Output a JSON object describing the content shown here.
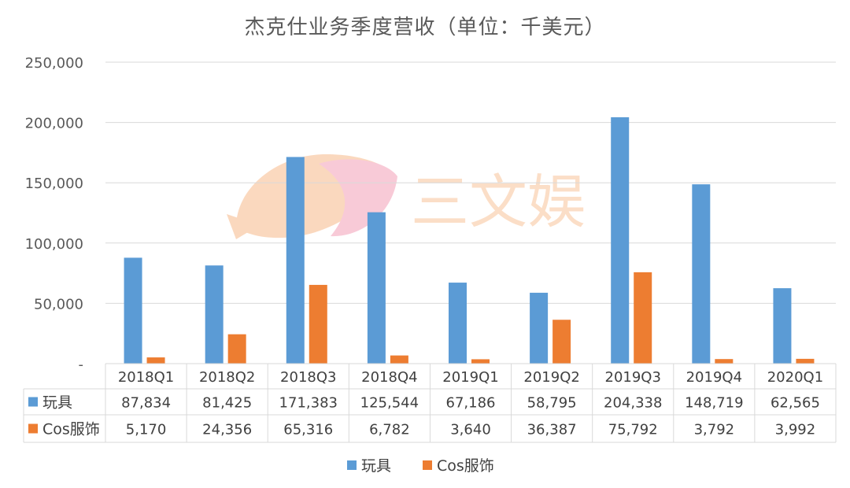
{
  "chart_data": {
    "type": "bar",
    "title": "杰克仕业务季度营收（单位：千美元）",
    "categories": [
      "2018Q1",
      "2018Q2",
      "2018Q3",
      "2018Q4",
      "2019Q1",
      "2019Q2",
      "2019Q3",
      "2019Q4",
      "2020Q1"
    ],
    "series": [
      {
        "name": "玩具",
        "color": "#5B9BD5",
        "values": [
          87834,
          81425,
          171383,
          125544,
          67186,
          58795,
          204338,
          148719,
          62565
        ],
        "labels": [
          "87,834",
          "81,425",
          "171,383",
          "125,544",
          "67,186",
          "58,795",
          "204,338",
          "148,719",
          "62,565"
        ]
      },
      {
        "name": "Cos服饰",
        "color": "#ED7D31",
        "values": [
          5170,
          24356,
          65316,
          6782,
          3640,
          36387,
          75792,
          3792,
          3992
        ],
        "labels": [
          "5,170",
          "24,356",
          "65,316",
          "6,782",
          "3,640",
          "36,387",
          "75,792",
          "3,792",
          "3,992"
        ]
      }
    ],
    "ylim": [
      0,
      250000
    ],
    "yticks": [
      0,
      50000,
      100000,
      150000,
      200000,
      250000
    ],
    "ytick_labels": [
      "-",
      "50,000",
      "100,000",
      "150,000",
      "200,000",
      "250,000"
    ],
    "grid": true,
    "legend": "bottom",
    "data_table": true
  },
  "watermark": {
    "text": "三文娱"
  }
}
